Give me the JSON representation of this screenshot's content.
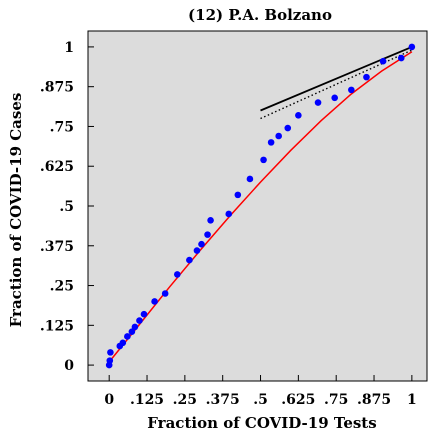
{
  "chart_data": {
    "type": "scatter",
    "title": "(12) P.A. Bolzano",
    "xlabel": "Fraction of COVID-19 Tests",
    "ylabel": "Fraction of COVID-19 Cases",
    "xlim": [
      -0.07,
      1.05
    ],
    "ylim": [
      -0.05,
      1.05
    ],
    "xticks": [
      0,
      0.125,
      0.25,
      0.375,
      0.5,
      0.625,
      0.75,
      0.875,
      1
    ],
    "xtick_labels": [
      "0",
      ".125",
      ".25",
      ".375",
      ".5",
      ".625",
      ".75",
      ".875",
      "1"
    ],
    "yticks": [
      0,
      0.125,
      0.25,
      0.375,
      0.5,
      0.625,
      0.75,
      0.875,
      1
    ],
    "ytick_labels": [
      "0",
      ".125",
      ".25",
      ".375",
      ".5",
      ".625",
      ".75",
      ".875",
      "1"
    ],
    "grid": false,
    "background": "#dcdcdc",
    "series": [
      {
        "kind": "scatter",
        "color": "#0000ff",
        "points": [
          [
            0.0,
            0.0
          ],
          [
            0.002,
            0.014
          ],
          [
            0.004,
            0.04
          ],
          [
            0.035,
            0.06
          ],
          [
            0.045,
            0.07
          ],
          [
            0.06,
            0.09
          ],
          [
            0.075,
            0.105
          ],
          [
            0.085,
            0.12
          ],
          [
            0.1,
            0.14
          ],
          [
            0.115,
            0.16
          ],
          [
            0.15,
            0.2
          ],
          [
            0.185,
            0.225
          ],
          [
            0.225,
            0.285
          ],
          [
            0.265,
            0.33
          ],
          [
            0.29,
            0.36
          ],
          [
            0.305,
            0.38
          ],
          [
            0.325,
            0.41
          ],
          [
            0.335,
            0.455
          ],
          [
            0.395,
            0.475
          ],
          [
            0.425,
            0.535
          ],
          [
            0.465,
            0.585
          ],
          [
            0.51,
            0.645
          ],
          [
            0.535,
            0.7
          ],
          [
            0.56,
            0.72
          ],
          [
            0.59,
            0.745
          ],
          [
            0.625,
            0.785
          ],
          [
            0.69,
            0.825
          ],
          [
            0.745,
            0.84
          ],
          [
            0.8,
            0.865
          ],
          [
            0.85,
            0.905
          ],
          [
            0.905,
            0.955
          ],
          [
            0.965,
            0.965
          ],
          [
            1.0,
            1.0
          ]
        ]
      },
      {
        "kind": "line",
        "color": "#ff0000",
        "style": "solid",
        "points": [
          [
            0.0,
            0.01
          ],
          [
            0.1,
            0.128
          ],
          [
            0.2,
            0.246
          ],
          [
            0.3,
            0.36
          ],
          [
            0.4,
            0.47
          ],
          [
            0.5,
            0.575
          ],
          [
            0.6,
            0.675
          ],
          [
            0.7,
            0.768
          ],
          [
            0.8,
            0.852
          ],
          [
            0.9,
            0.924
          ],
          [
            1.0,
            0.985
          ]
        ]
      },
      {
        "kind": "line",
        "color": "#000000",
        "style": "solid",
        "points": [
          [
            0.5,
            0.8
          ],
          [
            1.0,
            1.0
          ]
        ]
      },
      {
        "kind": "line",
        "color": "#000000",
        "style": "dotted",
        "points": [
          [
            0.5,
            0.775
          ],
          [
            1.0,
            0.99
          ]
        ]
      }
    ]
  }
}
